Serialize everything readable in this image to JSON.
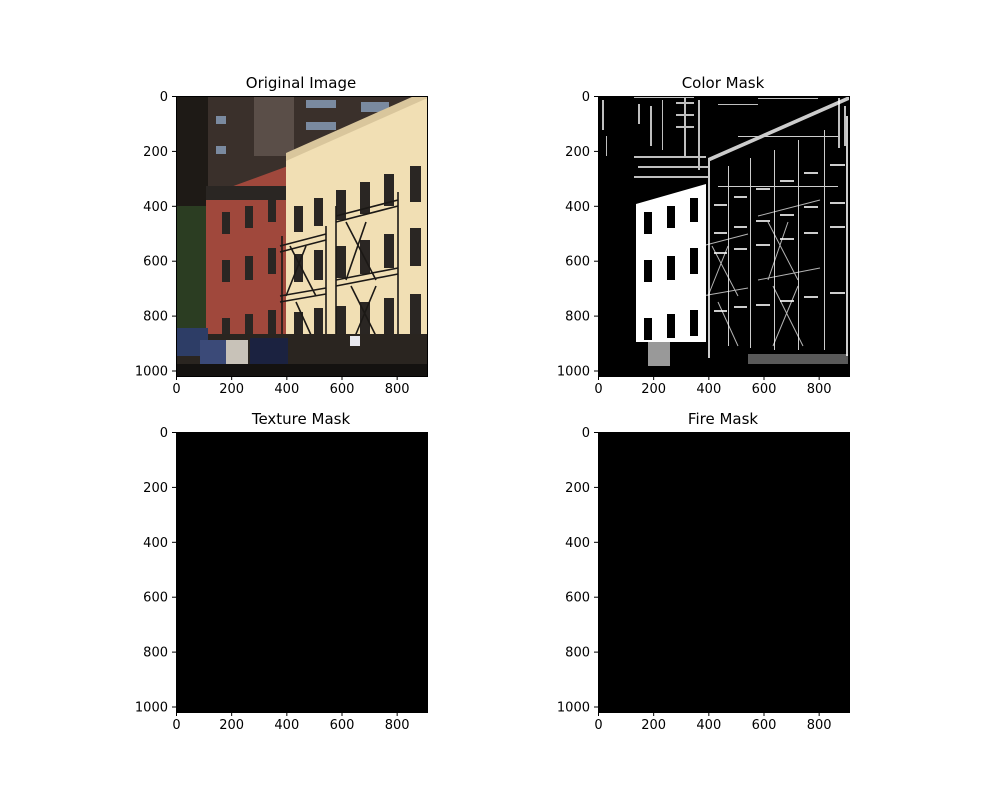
{
  "chart_data": [
    {
      "type": "image",
      "title": "Original Image",
      "content": "photo",
      "xlim": [
        0,
        910
      ],
      "ylim": [
        0,
        1020
      ],
      "y_inverted": true,
      "x_ticks": [
        "0",
        "200",
        "400",
        "600",
        "800"
      ],
      "y_ticks": [
        "0",
        "200",
        "400",
        "600",
        "800",
        "1000"
      ]
    },
    {
      "type": "image",
      "title": "Color Mask",
      "content": "binary-mask",
      "xlim": [
        0,
        910
      ],
      "ylim": [
        0,
        1020
      ],
      "y_inverted": true,
      "x_ticks": [
        "0",
        "200",
        "400",
        "600",
        "800"
      ],
      "y_ticks": [
        "0",
        "200",
        "400",
        "600",
        "800",
        "1000"
      ]
    },
    {
      "type": "image",
      "title": "Texture Mask",
      "content": "all-black",
      "xlim": [
        0,
        910
      ],
      "ylim": [
        0,
        1020
      ],
      "y_inverted": true,
      "x_ticks": [
        "0",
        "200",
        "400",
        "600",
        "800"
      ],
      "y_ticks": [
        "0",
        "200",
        "400",
        "600",
        "800",
        "1000"
      ]
    },
    {
      "type": "image",
      "title": "Fire Mask",
      "content": "all-black",
      "xlim": [
        0,
        910
      ],
      "ylim": [
        0,
        1020
      ],
      "y_inverted": true,
      "x_ticks": [
        "0",
        "200",
        "400",
        "600",
        "800"
      ],
      "y_ticks": [
        "0",
        "200",
        "400",
        "600",
        "800",
        "1000"
      ]
    }
  ],
  "colors": {
    "background": "#ffffff",
    "axis": "#000000",
    "mask_black": "#000000",
    "mask_white": "#ffffff",
    "sky": "#c9c7c2",
    "dark_tower": "#3a302b",
    "tower_windows": "#7a8aa0",
    "red_brick": "#a0483c",
    "cream_building": "#f1dfb4",
    "windows": "#2a2623",
    "tree": "#2b3d22",
    "blue_shed": "#2d3d66",
    "street": "#1a1816"
  }
}
